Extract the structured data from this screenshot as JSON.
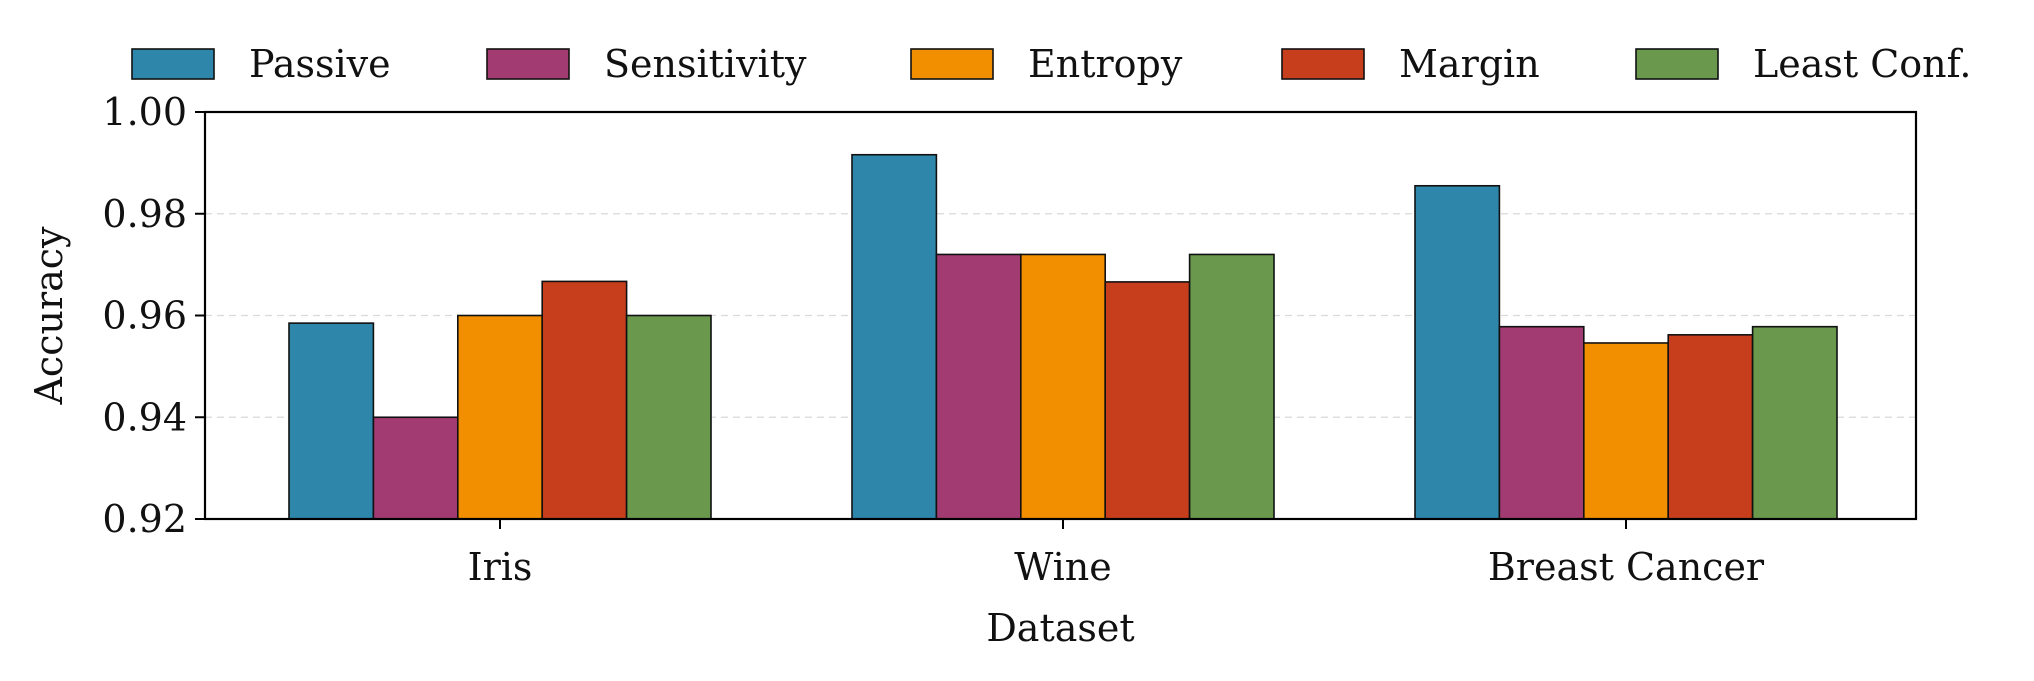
{
  "chart_data": {
    "type": "bar",
    "title": "",
    "xlabel": "Dataset",
    "ylabel": "Accuracy",
    "categories": [
      "Iris",
      "Wine",
      "Breast Cancer"
    ],
    "ylim": [
      0.92,
      1.0
    ],
    "yticks": [
      0.92,
      0.94,
      0.96,
      0.98,
      1.0
    ],
    "ytick_labels": [
      "0.92",
      "0.94",
      "0.96",
      "0.98",
      "1.00"
    ],
    "grid": "horizontal dashed",
    "legend_position": "top",
    "series": [
      {
        "name": "Passive",
        "color": "#2e86ab",
        "values": [
          0.9585,
          0.9916,
          0.9855
        ]
      },
      {
        "name": "Sensitivity",
        "color": "#a23b72",
        "values": [
          0.94,
          0.972,
          0.9578
        ]
      },
      {
        "name": "Entropy",
        "color": "#f18f01",
        "values": [
          0.96,
          0.972,
          0.9546
        ]
      },
      {
        "name": "Margin",
        "color": "#c73e1d",
        "values": [
          0.9667,
          0.9666,
          0.9562
        ]
      },
      {
        "name": "Least Conf.",
        "color": "#6a994e",
        "values": [
          0.96,
          0.972,
          0.9578
        ]
      }
    ]
  }
}
